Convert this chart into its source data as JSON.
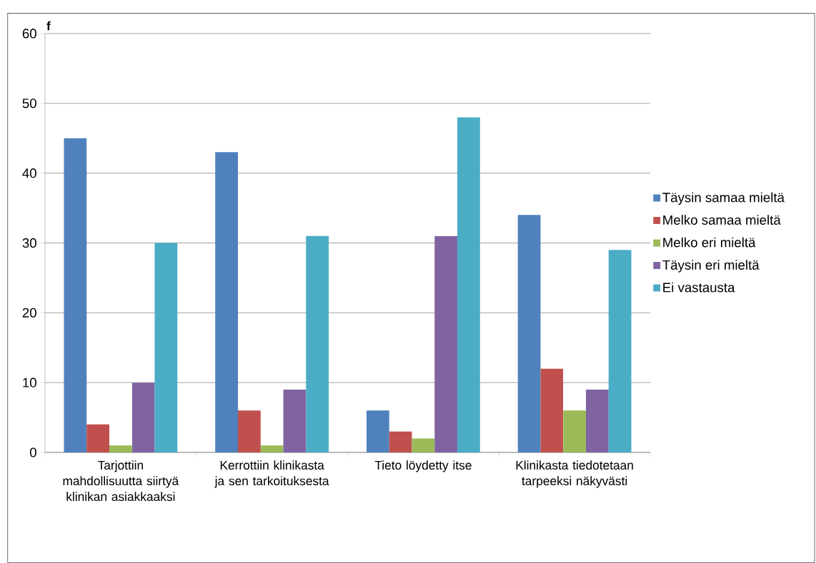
{
  "chart_data": {
    "type": "bar",
    "ylabel": "f",
    "categories": [
      "Tarjottiin mahdollisuutta siirtyä klinikan asiakkaaksi",
      "Kerrottiin klinikasta ja sen tarkoituksesta",
      "Tieto löydetty itse",
      "Klinikasta tiedotetaan tarpeeksi näkyvästi"
    ],
    "series": [
      {
        "name": "Täysin samaa mieltä",
        "color": "#4f81bd",
        "values": [
          45,
          43,
          6,
          34
        ]
      },
      {
        "name": "Melko samaa mieltä",
        "color": "#c0504d",
        "values": [
          4,
          6,
          3,
          12
        ]
      },
      {
        "name": "Melko eri mieltä",
        "color": "#9bbb59",
        "values": [
          1,
          1,
          2,
          6
        ]
      },
      {
        "name": "Täysin eri mieltä",
        "color": "#8064a2",
        "values": [
          10,
          9,
          31,
          9
        ]
      },
      {
        "name": "Ei vastausta",
        "color": "#4bacc6",
        "values": [
          30,
          31,
          48,
          29
        ]
      }
    ],
    "ylim": [
      0,
      60
    ],
    "yticks": [
      0,
      10,
      20,
      30,
      40,
      50,
      60
    ],
    "grid": "y",
    "legend": "right"
  }
}
